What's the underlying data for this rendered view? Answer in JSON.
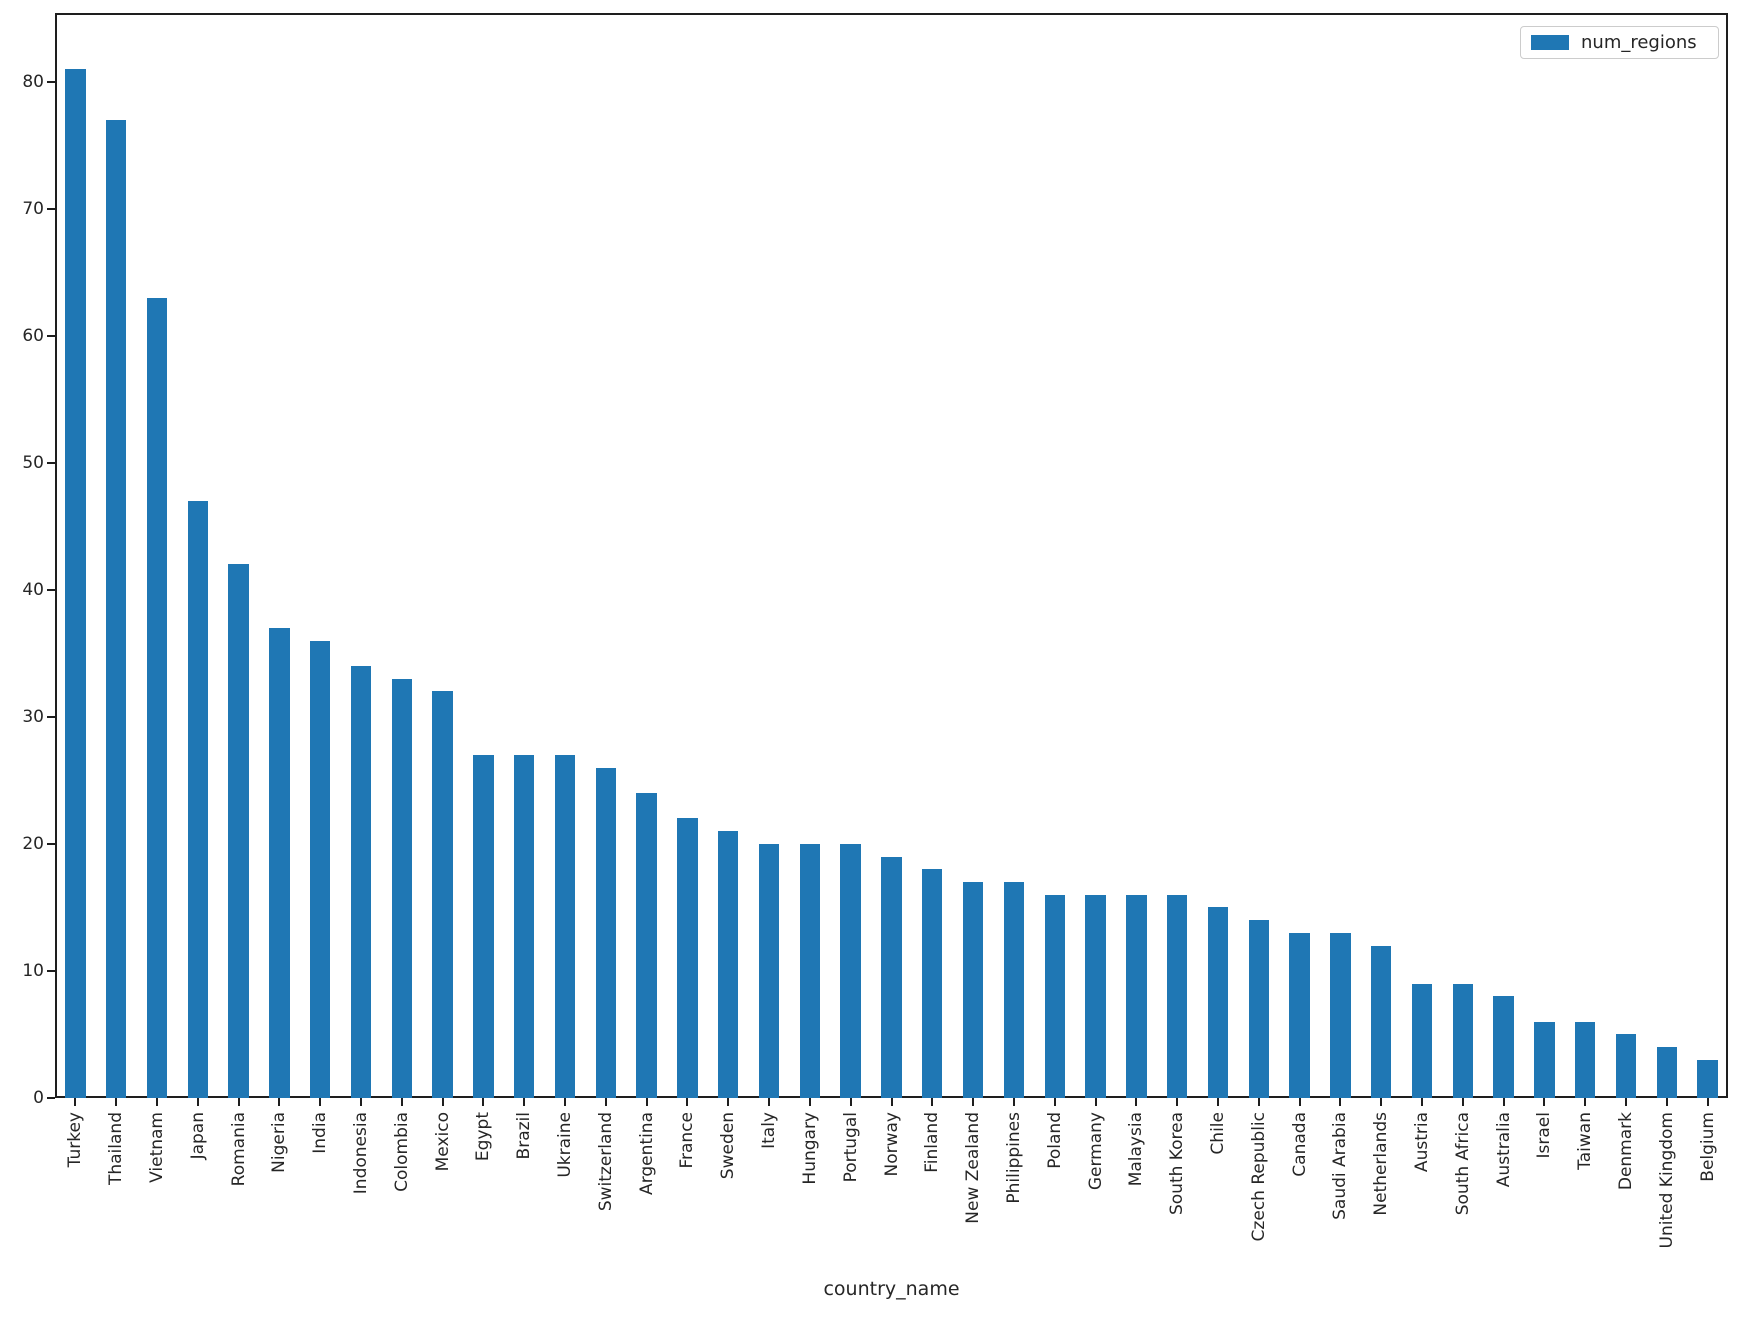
{
  "chart_data": {
    "type": "bar",
    "title": "",
    "xlabel": "country_name",
    "ylabel": "",
    "legend_label": "num_regions",
    "legend_position": "upper right",
    "grid": false,
    "ylim": [
      0,
      85.4
    ],
    "yticks": [
      0,
      10,
      20,
      30,
      40,
      50,
      60,
      70,
      80
    ],
    "categories": [
      "Turkey",
      "Thailand",
      "Vietnam",
      "Japan",
      "Romania",
      "Nigeria",
      "India",
      "Indonesia",
      "Colombia",
      "Mexico",
      "Egypt",
      "Brazil",
      "Ukraine",
      "Switzerland",
      "Argentina",
      "France",
      "Sweden",
      "Italy",
      "Hungary",
      "Portugal",
      "Norway",
      "Finland",
      "New Zealand",
      "Philippines",
      "Poland",
      "Germany",
      "Malaysia",
      "South Korea",
      "Chile",
      "Czech Republic",
      "Canada",
      "Saudi Arabia",
      "Netherlands",
      "Austria",
      "South Africa",
      "Australia",
      "Israel",
      "Taiwan",
      "Denmark",
      "United Kingdom",
      "Belgium"
    ],
    "values": [
      81,
      77,
      63,
      47,
      42,
      37,
      36,
      34,
      33,
      32,
      27,
      27,
      27,
      26,
      24,
      22,
      21,
      20,
      20,
      20,
      19,
      18,
      17,
      17,
      16,
      16,
      16,
      16,
      15,
      14,
      13,
      13,
      12,
      9,
      9,
      8,
      6,
      6,
      5,
      4,
      3
    ],
    "colors": {
      "bar": "#1f77b4",
      "axis": "#1e1e1e",
      "text": "#262626",
      "legend_border": "#cccccc",
      "background": "#ffffff"
    }
  }
}
